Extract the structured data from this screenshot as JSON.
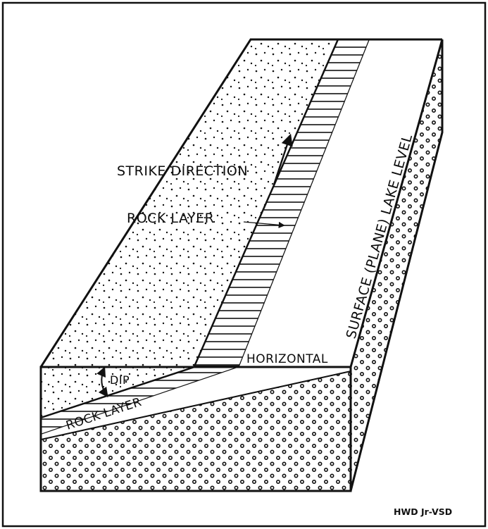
{
  "labels": {
    "strike_direction": "STRIKE DIRECTION",
    "rock_layer_top": "ROCK LAYER",
    "horizontal": "HORIZONTAL",
    "dip": "DIP",
    "rock_layer_side": "ROCK LAYER",
    "lake_level": "SURFACE (PLANE) LAKE LEVEL"
  },
  "credit": "HWD Jr-VSD"
}
